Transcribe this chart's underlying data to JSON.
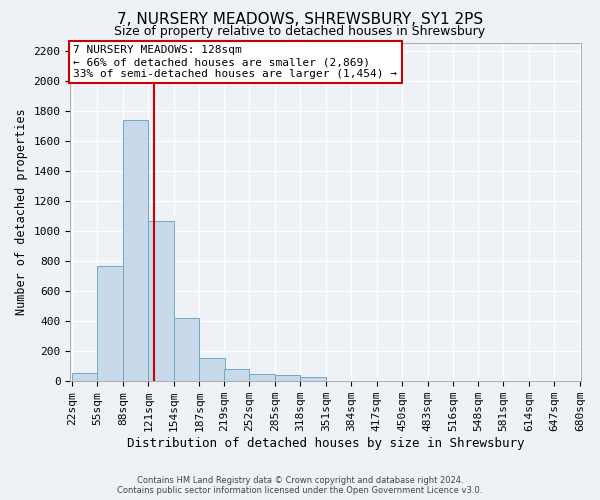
{
  "title": "7, NURSERY MEADOWS, SHREWSBURY, SY1 2PS",
  "subtitle": "Size of property relative to detached houses in Shrewsbury",
  "xlabel": "Distribution of detached houses by size in Shrewsbury",
  "ylabel": "Number of detached properties",
  "footer_line1": "Contains HM Land Registry data © Crown copyright and database right 2024.",
  "footer_line2": "Contains public sector information licensed under the Open Government Licence v3.0.",
  "bin_edges": [
    22,
    55,
    88,
    121,
    154,
    187,
    219,
    252,
    285,
    318,
    351,
    384,
    417,
    450,
    483,
    516,
    548,
    581,
    614,
    647,
    680
  ],
  "bin_labels": [
    "22sqm",
    "55sqm",
    "88sqm",
    "121sqm",
    "154sqm",
    "187sqm",
    "219sqm",
    "252sqm",
    "285sqm",
    "318sqm",
    "351sqm",
    "384sqm",
    "417sqm",
    "450sqm",
    "483sqm",
    "516sqm",
    "548sqm",
    "581sqm",
    "614sqm",
    "647sqm",
    "680sqm"
  ],
  "bar_heights": [
    55,
    770,
    1740,
    1070,
    420,
    158,
    83,
    48,
    40,
    28,
    0,
    0,
    0,
    0,
    0,
    0,
    0,
    0,
    0,
    0
  ],
  "bar_color": "#c8d9ea",
  "bar_edge_color": "#6fa8cc",
  "property_size": 128,
  "property_label": "7 NURSERY MEADOWS: 128sqm",
  "annotation_line1": "← 66% of detached houses are smaller (2,869)",
  "annotation_line2": "33% of semi-detached houses are larger (1,454) →",
  "red_line_color": "#cc0000",
  "annotation_box_facecolor": "#ffffff",
  "annotation_box_edgecolor": "#cc0000",
  "ylim": [
    0,
    2260
  ],
  "background_color": "#eef2f7",
  "axes_background": "#eef2f7",
  "grid_color": "#ffffff",
  "tick_label_fontsize": 8,
  "ylabel_fontsize": 8.5,
  "xlabel_fontsize": 9,
  "title_fontsize": 11,
  "subtitle_fontsize": 9
}
